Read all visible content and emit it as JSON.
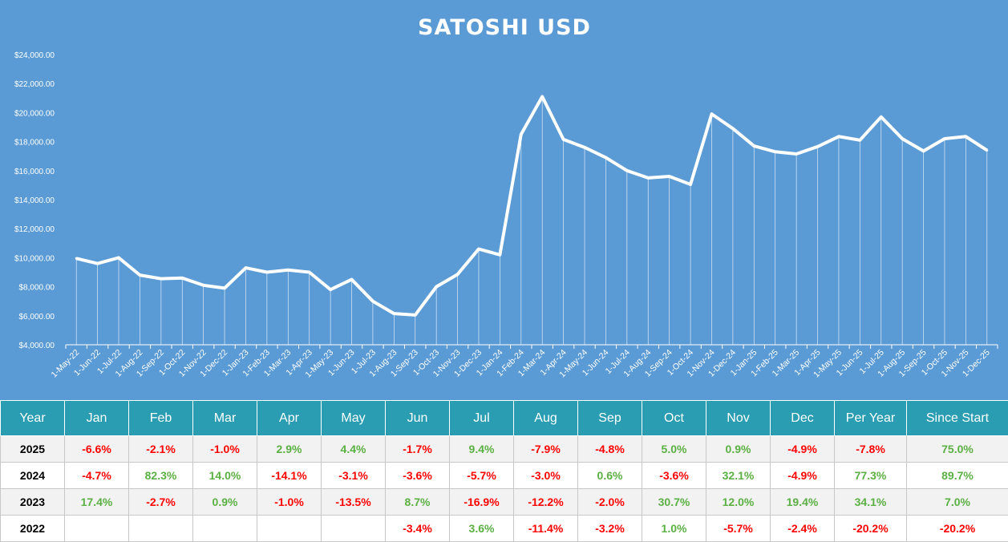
{
  "chart_data": {
    "type": "line",
    "title": "SATOSHI USD",
    "xlabel": "",
    "ylabel": "",
    "ylim": [
      4000,
      24000
    ],
    "yticks": [
      "$4,000.00",
      "$6,000.00",
      "$8,000.00",
      "$10,000.00",
      "$12,000.00",
      "$14,000.00",
      "$16,000.00",
      "$18,000.00",
      "$20,000.00",
      "$22,000.00",
      "$24,000.00"
    ],
    "ytick_values": [
      4000,
      6000,
      8000,
      10000,
      12000,
      14000,
      16000,
      18000,
      20000,
      22000,
      24000
    ],
    "categories": [
      "1-May-22",
      "1-Jun-22",
      "1-Jul-22",
      "1-Aug-22",
      "1-Sep-22",
      "1-Oct-22",
      "1-Nov-22",
      "1-Dec-22",
      "1-Jan-23",
      "1-Feb-23",
      "1-Mar-23",
      "1-Apr-23",
      "1-May-23",
      "1-Jun-23",
      "1-Jul-23",
      "1-Aug-23",
      "1-Sep-23",
      "1-Oct-23",
      "1-Nov-23",
      "1-Dec-23",
      "1-Jan-24",
      "1-Feb-24",
      "1-Mar-24",
      "1-Apr-24",
      "1-May-24",
      "1-Jun-24",
      "1-Jul-24",
      "1-Aug-24",
      "1-Sep-24",
      "1-Oct-24",
      "1-Nov-24",
      "1-Dec-24",
      "1-Jan-25",
      "1-Feb-25",
      "1-Mar-25",
      "1-Apr-25",
      "1-May-25",
      "1-Jun-25",
      "1-Jul-25",
      "1-Aug-25",
      "1-Sep-25",
      "1-Oct-25",
      "1-Nov-25",
      "1-Dec-25"
    ],
    "values": [
      9950,
      9600,
      10000,
      8800,
      8550,
      8600,
      8100,
      7900,
      9300,
      9000,
      9150,
      9000,
      7800,
      8500,
      7000,
      6150,
      6050,
      8000,
      8850,
      10600,
      10200,
      18500,
      21100,
      18150,
      17600,
      16900,
      16000,
      15500,
      15600,
      15050,
      19900,
      18900,
      17700,
      17300,
      17150,
      17650,
      18350,
      18100,
      19700,
      18200,
      17350,
      18200,
      18350,
      17400
    ],
    "grid": false,
    "legend": "none"
  },
  "table": {
    "headers": [
      "Year",
      "Jan",
      "Feb",
      "Mar",
      "Apr",
      "May",
      "Jun",
      "Jul",
      "Aug",
      "Sep",
      "Oct",
      "Nov",
      "Dec",
      "Per Year",
      "Since Start"
    ],
    "rows": [
      [
        "2025",
        "-6.6%",
        "-2.1%",
        "-1.0%",
        "2.9%",
        "4.4%",
        "-1.7%",
        "9.4%",
        "-7.9%",
        "-4.8%",
        "5.0%",
        "0.9%",
        "-4.9%",
        "-7.8%",
        "75.0%"
      ],
      [
        "2024",
        "-4.7%",
        "82.3%",
        "14.0%",
        "-14.1%",
        "-3.1%",
        "-3.6%",
        "-5.7%",
        "-3.0%",
        "0.6%",
        "-3.6%",
        "32.1%",
        "-4.9%",
        "77.3%",
        "89.7%"
      ],
      [
        "2023",
        "17.4%",
        "-2.7%",
        "0.9%",
        "-1.0%",
        "-13.5%",
        "8.7%",
        "-16.9%",
        "-12.2%",
        "-2.0%",
        "30.7%",
        "12.0%",
        "19.4%",
        "34.1%",
        "7.0%"
      ],
      [
        "2022",
        "",
        "",
        "",
        "",
        "",
        "-3.4%",
        "3.6%",
        "-11.4%",
        "-3.2%",
        "1.0%",
        "-5.7%",
        "-2.4%",
        "-20.2%",
        "-20.2%"
      ]
    ]
  },
  "colors": {
    "background": "#5b9bd5",
    "header": "#2a9db3",
    "positive": "#5bb043",
    "negative": "#ff0000"
  }
}
